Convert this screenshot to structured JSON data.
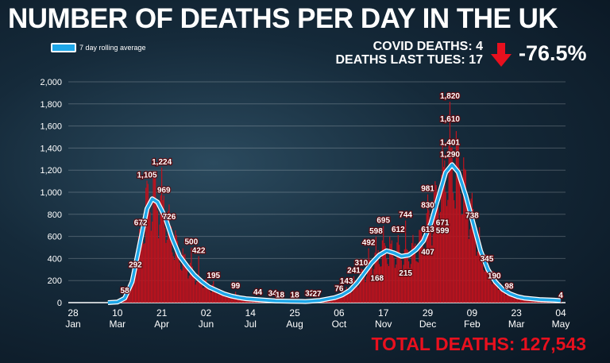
{
  "header": {
    "title": "NUMBER OF DEATHS PER DAY IN THE UK",
    "legend_label": "7 day rolling average",
    "covid_deaths": "COVID DEATHS: 4",
    "deaths_last_tues": "DEATHS LAST TUES: 17",
    "change": "-76.5%",
    "total": "TOTAL DEATHS: 127,543"
  },
  "colors": {
    "bars": "#c0121d",
    "average_line": "#1ea7e8",
    "down_arrow": "#e8101e",
    "total": "#e8101e"
  },
  "chart_data": {
    "type": "bar",
    "xlabel": "",
    "ylabel": "",
    "ylim": [
      0,
      2000
    ],
    "yticks": [
      "0",
      "200",
      "400",
      "600",
      "800",
      "1,000",
      "1,200",
      "1,400",
      "1,600",
      "1,800",
      "2,000"
    ],
    "xticks": [
      {
        "date": "2020-01-28",
        "day": "28",
        "month": "Jan"
      },
      {
        "date": "2020-03-10",
        "day": "10",
        "month": "Mar"
      },
      {
        "date": "2020-04-21",
        "day": "21",
        "month": "Apr"
      },
      {
        "date": "2020-06-02",
        "day": "02",
        "month": "Jun"
      },
      {
        "date": "2020-07-14",
        "day": "14",
        "month": "Jul"
      },
      {
        "date": "2020-08-25",
        "day": "25",
        "month": "Aug"
      },
      {
        "date": "2020-10-06",
        "day": "06",
        "month": "Oct"
      },
      {
        "date": "2020-11-17",
        "day": "17",
        "month": "Nov"
      },
      {
        "date": "2020-12-29",
        "day": "29",
        "month": "Dec"
      },
      {
        "date": "2021-02-09",
        "day": "09",
        "month": "Feb"
      },
      {
        "date": "2021-03-23",
        "day": "23",
        "month": "Mar"
      },
      {
        "date": "2021-05-04",
        "day": "04",
        "month": "May"
      }
    ],
    "annotations": [
      {
        "date": "2020-03-17",
        "value": "58",
        "label": "58"
      },
      {
        "date": "2020-03-27",
        "value": "292",
        "label": "292"
      },
      {
        "date": "2020-04-01",
        "value": "672",
        "label": "672"
      },
      {
        "date": "2020-04-07",
        "value": "1105",
        "label": "1,105"
      },
      {
        "date": "2020-04-21",
        "value": "1224",
        "label": "1,224"
      },
      {
        "date": "2020-04-23",
        "value": "969",
        "label": "969"
      },
      {
        "date": "2020-04-28",
        "value": "726",
        "label": "726"
      },
      {
        "date": "2020-05-19",
        "value": "500",
        "label": "500"
      },
      {
        "date": "2020-05-26",
        "value": "422",
        "label": "422"
      },
      {
        "date": "2020-06-09",
        "value": "195",
        "label": "195"
      },
      {
        "date": "2020-06-30",
        "value": "99",
        "label": "99"
      },
      {
        "date": "2020-07-21",
        "value": "44",
        "label": "44"
      },
      {
        "date": "2020-08-04",
        "value": "34",
        "label": "34"
      },
      {
        "date": "2020-08-11",
        "value": "18",
        "label": "18"
      },
      {
        "date": "2020-08-25",
        "value": "18",
        "label": "18"
      },
      {
        "date": "2020-09-08",
        "value": "32",
        "label": "32"
      },
      {
        "date": "2020-09-15",
        "value": "27",
        "label": "27"
      },
      {
        "date": "2020-10-06",
        "value": "76",
        "label": "76"
      },
      {
        "date": "2020-10-13",
        "value": "143",
        "label": "143"
      },
      {
        "date": "2020-10-20",
        "value": "241",
        "label": "241"
      },
      {
        "date": "2020-10-27",
        "value": "310",
        "label": "310"
      },
      {
        "date": "2020-11-03",
        "value": "492",
        "label": "492"
      },
      {
        "date": "2020-11-10",
        "value": "598",
        "label": "598"
      },
      {
        "date": "2020-11-17",
        "value": "695",
        "label": "695"
      },
      {
        "date": "2020-11-11",
        "value": "168",
        "label": "168"
      },
      {
        "date": "2020-12-01",
        "value": "612",
        "label": "612"
      },
      {
        "date": "2020-12-08",
        "value": "744",
        "label": "744"
      },
      {
        "date": "2020-12-08",
        "value": "215",
        "label": "215"
      },
      {
        "date": "2020-12-29",
        "value": "981",
        "label": "981"
      },
      {
        "date": "2020-12-29",
        "value": "830",
        "label": "830"
      },
      {
        "date": "2020-12-29",
        "value": "613",
        "label": "613"
      },
      {
        "date": "2020-12-29",
        "value": "407",
        "label": "407"
      },
      {
        "date": "2021-01-12",
        "value": "671",
        "label": "671"
      },
      {
        "date": "2021-01-12",
        "value": "599",
        "label": "599"
      },
      {
        "date": "2021-01-19",
        "value": "1820",
        "label": "1,820"
      },
      {
        "date": "2021-01-19",
        "value": "1610",
        "label": "1,610"
      },
      {
        "date": "2021-01-19",
        "value": "1401",
        "label": "1,401"
      },
      {
        "date": "2021-01-19",
        "value": "1290",
        "label": "1,290"
      },
      {
        "date": "2021-02-09",
        "value": "738",
        "label": "738"
      },
      {
        "date": "2021-02-23",
        "value": "345",
        "label": "345"
      },
      {
        "date": "2021-03-02",
        "value": "190",
        "label": "190"
      },
      {
        "date": "2021-03-16",
        "value": "98",
        "label": "98"
      },
      {
        "date": "2021-05-04",
        "value": "4",
        "label": "4"
      }
    ],
    "rolling_average": [
      {
        "date": "2020-03-01",
        "value": 0
      },
      {
        "date": "2020-03-10",
        "value": 5
      },
      {
        "date": "2020-03-17",
        "value": 40
      },
      {
        "date": "2020-03-24",
        "value": 190
      },
      {
        "date": "2020-03-31",
        "value": 520
      },
      {
        "date": "2020-04-07",
        "value": 850
      },
      {
        "date": "2020-04-12",
        "value": 940
      },
      {
        "date": "2020-04-17",
        "value": 910
      },
      {
        "date": "2020-04-24",
        "value": 780
      },
      {
        "date": "2020-05-01",
        "value": 580
      },
      {
        "date": "2020-05-08",
        "value": 420
      },
      {
        "date": "2020-05-15",
        "value": 330
      },
      {
        "date": "2020-05-22",
        "value": 250
      },
      {
        "date": "2020-05-29",
        "value": 190
      },
      {
        "date": "2020-06-05",
        "value": 140
      },
      {
        "date": "2020-06-12",
        "value": 110
      },
      {
        "date": "2020-06-19",
        "value": 80
      },
      {
        "date": "2020-06-26",
        "value": 60
      },
      {
        "date": "2020-07-03",
        "value": 45
      },
      {
        "date": "2020-07-10",
        "value": 35
      },
      {
        "date": "2020-07-24",
        "value": 25
      },
      {
        "date": "2020-08-07",
        "value": 15
      },
      {
        "date": "2020-08-21",
        "value": 12
      },
      {
        "date": "2020-09-04",
        "value": 10
      },
      {
        "date": "2020-09-18",
        "value": 20
      },
      {
        "date": "2020-10-02",
        "value": 45
      },
      {
        "date": "2020-10-09",
        "value": 70
      },
      {
        "date": "2020-10-16",
        "value": 110
      },
      {
        "date": "2020-10-23",
        "value": 180
      },
      {
        "date": "2020-10-30",
        "value": 270
      },
      {
        "date": "2020-11-06",
        "value": 360
      },
      {
        "date": "2020-11-13",
        "value": 430
      },
      {
        "date": "2020-11-20",
        "value": 470
      },
      {
        "date": "2020-11-27",
        "value": 450
      },
      {
        "date": "2020-12-04",
        "value": 420
      },
      {
        "date": "2020-12-11",
        "value": 430
      },
      {
        "date": "2020-12-18",
        "value": 480
      },
      {
        "date": "2020-12-25",
        "value": 560
      },
      {
        "date": "2021-01-01",
        "value": 720
      },
      {
        "date": "2021-01-08",
        "value": 950
      },
      {
        "date": "2021-01-15",
        "value": 1180
      },
      {
        "date": "2021-01-21",
        "value": 1250
      },
      {
        "date": "2021-01-27",
        "value": 1180
      },
      {
        "date": "2021-02-03",
        "value": 970
      },
      {
        "date": "2021-02-10",
        "value": 720
      },
      {
        "date": "2021-02-17",
        "value": 470
      },
      {
        "date": "2021-02-24",
        "value": 300
      },
      {
        "date": "2021-03-03",
        "value": 190
      },
      {
        "date": "2021-03-10",
        "value": 120
      },
      {
        "date": "2021-03-17",
        "value": 80
      },
      {
        "date": "2021-03-24",
        "value": 55
      },
      {
        "date": "2021-03-31",
        "value": 40
      },
      {
        "date": "2021-04-14",
        "value": 28
      },
      {
        "date": "2021-04-28",
        "value": 22
      },
      {
        "date": "2021-05-04",
        "value": 18
      }
    ]
  }
}
